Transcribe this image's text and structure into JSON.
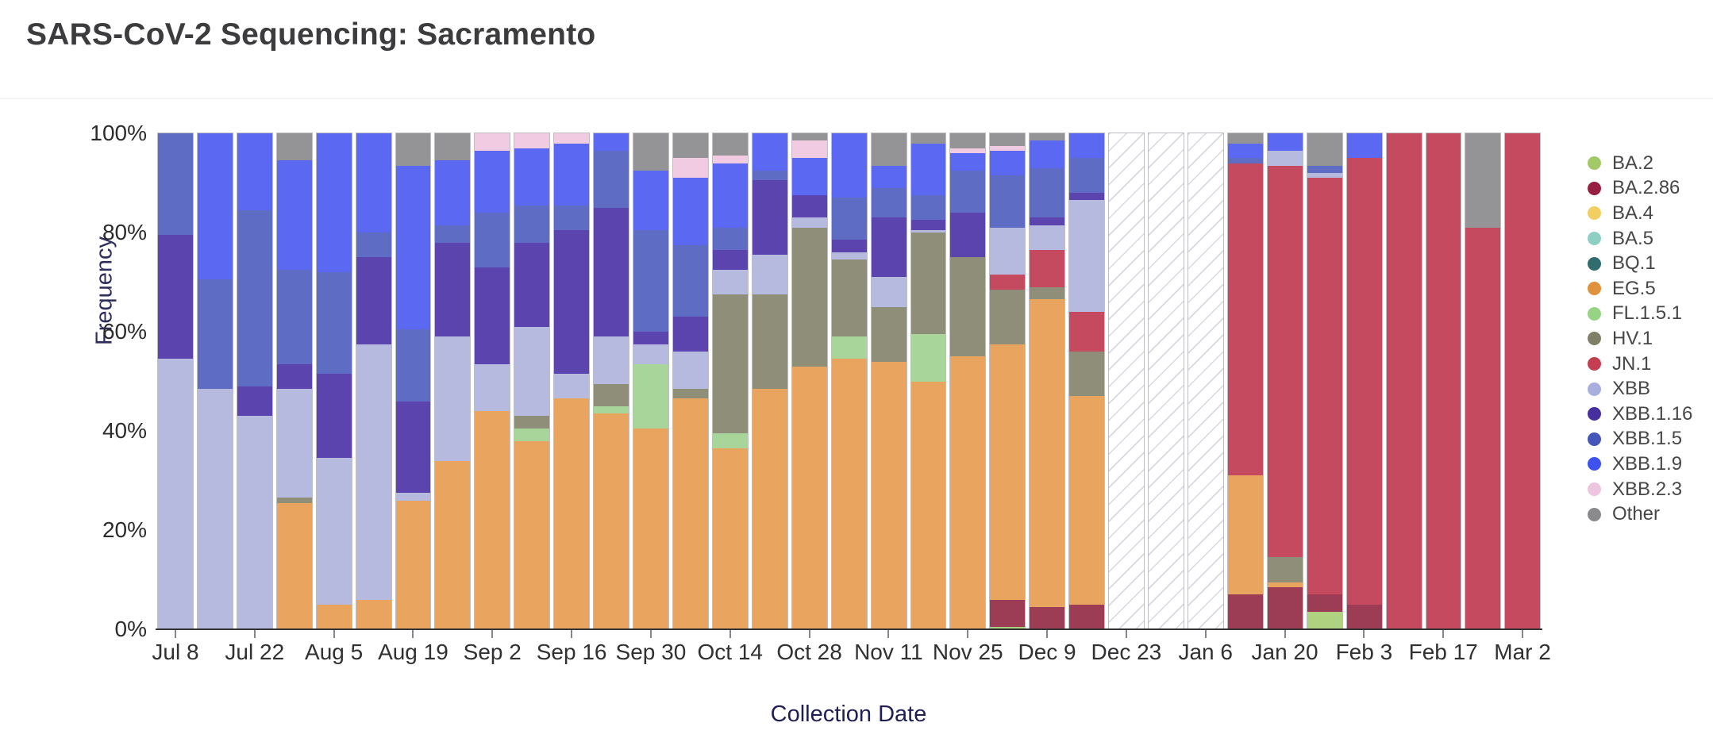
{
  "header": {
    "title": "SARS-CoV-2 Sequencing: Sacramento"
  },
  "chart_data": {
    "type": "bar",
    "stacked": true,
    "title": "SARS-CoV-2 Sequencing: Sacramento",
    "xlabel": "Collection Date",
    "ylabel": "Frequency",
    "ylim": [
      0,
      100
    ],
    "grid": false,
    "legend_position": "right",
    "y_tick_labels": [
      "0%",
      "20%",
      "40%",
      "60%",
      "80%",
      "100%"
    ],
    "x_tick_labels": [
      "Jul 8",
      "Jul 22",
      "Aug 5",
      "Aug 19",
      "Sep 2",
      "Sep 16",
      "Sep 30",
      "Oct 14",
      "Oct 28",
      "Nov 11",
      "Nov 25",
      "Dec 9",
      "Dec 23",
      "Jan 6",
      "Jan 20",
      "Feb 3",
      "Feb 17",
      "Mar 2"
    ],
    "series_legend": [
      {
        "name": "BA.2",
        "legend_color": "#a2c968",
        "bar_color": "#aed27f"
      },
      {
        "name": "BA.2.86",
        "legend_color": "#962041",
        "bar_color": "#9c3c55"
      },
      {
        "name": "BA.4",
        "legend_color": "#f2ce63",
        "bar_color": "#f2ce63"
      },
      {
        "name": "BA.5",
        "legend_color": "#8ecfc4",
        "bar_color": "#8ecfc4"
      },
      {
        "name": "BQ.1",
        "legend_color": "#2f6d6f",
        "bar_color": "#2f6d6f"
      },
      {
        "name": "EG.5",
        "legend_color": "#e0913c",
        "bar_color": "#e9a45f"
      },
      {
        "name": "FL.1.5.1",
        "legend_color": "#97d384",
        "bar_color": "#a8d59a"
      },
      {
        "name": "HV.1",
        "legend_color": "#7e7f66",
        "bar_color": "#8e8e79"
      },
      {
        "name": "JN.1",
        "legend_color": "#c43e52",
        "bar_color": "#c54a5f"
      },
      {
        "name": "XBB",
        "legend_color": "#a8aede",
        "bar_color": "#b5bade"
      },
      {
        "name": "XBB.1.16",
        "legend_color": "#47309e",
        "bar_color": "#5b44ad"
      },
      {
        "name": "XBB.1.5",
        "legend_color": "#4456b8",
        "bar_color": "#5f6cc4"
      },
      {
        "name": "XBB.1.9",
        "legend_color": "#3d52ee",
        "bar_color": "#5a68f2"
      },
      {
        "name": "XBB.2.3",
        "legend_color": "#eec5de",
        "bar_color": "#f0cbe2"
      },
      {
        "name": "Other",
        "legend_color": "#8a8a8c",
        "bar_color": "#949496"
      }
    ],
    "bars": [
      {
        "date": "Jul 8",
        "label": "Jul 8",
        "segments": [
          [
            "XBB",
            54.5
          ],
          [
            "XBB.1.16",
            25
          ],
          [
            "XBB.1.5",
            20.5
          ]
        ]
      },
      {
        "date": "Jul 15",
        "segments": [
          [
            "XBB",
            48.5
          ],
          [
            "XBB.1.5",
            22
          ],
          [
            "XBB.1.9",
            29.5
          ]
        ]
      },
      {
        "date": "Jul 22",
        "label": "Jul 22",
        "segments": [
          [
            "XBB",
            43
          ],
          [
            "XBB.1.16",
            6
          ],
          [
            "XBB.1.5",
            35.5
          ],
          [
            "XBB.1.9",
            15.5
          ]
        ]
      },
      {
        "date": "Jul 29",
        "segments": [
          [
            "EG.5",
            25.5
          ],
          [
            "HV.1",
            1
          ],
          [
            "XBB",
            22
          ],
          [
            "XBB.1.16",
            5
          ],
          [
            "XBB.1.5",
            19
          ],
          [
            "XBB.1.9",
            22
          ],
          [
            "Other",
            5.5
          ]
        ]
      },
      {
        "date": "Aug 5",
        "label": "Aug 5",
        "segments": [
          [
            "EG.5",
            5
          ],
          [
            "XBB",
            29.5
          ],
          [
            "XBB.1.16",
            17
          ],
          [
            "XBB.1.5",
            20.5
          ],
          [
            "XBB.1.9",
            28
          ]
        ]
      },
      {
        "date": "Aug 12",
        "segments": [
          [
            "EG.5",
            6
          ],
          [
            "XBB",
            51.5
          ],
          [
            "XBB.1.16",
            17.5
          ],
          [
            "XBB.1.5",
            5
          ],
          [
            "XBB.1.9",
            20
          ]
        ]
      },
      {
        "date": "Aug 19",
        "label": "Aug 19",
        "segments": [
          [
            "EG.5",
            26
          ],
          [
            "XBB",
            1.5
          ],
          [
            "XBB.1.16",
            18.5
          ],
          [
            "XBB.1.5",
            14.5
          ],
          [
            "XBB.1.9",
            33
          ],
          [
            "Other",
            6.5
          ]
        ]
      },
      {
        "date": "Aug 26",
        "segments": [
          [
            "EG.5",
            34
          ],
          [
            "XBB",
            25
          ],
          [
            "XBB.1.16",
            19
          ],
          [
            "XBB.1.5",
            3.5
          ],
          [
            "XBB.1.9",
            13
          ],
          [
            "Other",
            5.5
          ]
        ]
      },
      {
        "date": "Sep 2",
        "label": "Sep 2",
        "segments": [
          [
            "EG.5",
            44
          ],
          [
            "XBB",
            9.5
          ],
          [
            "XBB.1.16",
            19.5
          ],
          [
            "XBB.1.5",
            11
          ],
          [
            "XBB.1.9",
            12.5
          ],
          [
            "XBB.2.3",
            3.5
          ]
        ]
      },
      {
        "date": "Sep 9",
        "segments": [
          [
            "EG.5",
            38
          ],
          [
            "FL.1.5.1",
            2.5
          ],
          [
            "HV.1",
            2.5
          ],
          [
            "XBB",
            18
          ],
          [
            "XBB.1.16",
            17
          ],
          [
            "XBB.1.5",
            7.5
          ],
          [
            "XBB.1.9",
            11.5
          ],
          [
            "XBB.2.3",
            3
          ]
        ]
      },
      {
        "date": "Sep 16",
        "label": "Sep 16",
        "segments": [
          [
            "EG.5",
            46.5
          ],
          [
            "XBB",
            5
          ],
          [
            "XBB.1.16",
            29
          ],
          [
            "XBB.1.5",
            5
          ],
          [
            "XBB.1.9",
            12.5
          ],
          [
            "XBB.2.3",
            2
          ]
        ]
      },
      {
        "date": "Sep 23",
        "segments": [
          [
            "EG.5",
            43.5
          ],
          [
            "FL.1.5.1",
            1.5
          ],
          [
            "HV.1",
            4.5
          ],
          [
            "XBB",
            9.5
          ],
          [
            "XBB.1.16",
            26
          ],
          [
            "XBB.1.5",
            11.5
          ],
          [
            "XBB.1.9",
            3.5
          ]
        ]
      },
      {
        "date": "Sep 30",
        "label": "Sep 30",
        "segments": [
          [
            "EG.5",
            40.5
          ],
          [
            "FL.1.5.1",
            13
          ],
          [
            "XBB",
            4
          ],
          [
            "XBB.1.16",
            2.5
          ],
          [
            "XBB.1.5",
            20.5
          ],
          [
            "XBB.1.9",
            12
          ],
          [
            "Other",
            7.5
          ]
        ]
      },
      {
        "date": "Oct 7",
        "segments": [
          [
            "EG.5",
            46.5
          ],
          [
            "HV.1",
            2
          ],
          [
            "XBB",
            7.5
          ],
          [
            "XBB.1.16",
            7
          ],
          [
            "XBB.1.5",
            14.5
          ],
          [
            "XBB.1.9",
            13.5
          ],
          [
            "XBB.2.3",
            4
          ],
          [
            "Other",
            5
          ]
        ]
      },
      {
        "date": "Oct 14",
        "label": "Oct 14",
        "segments": [
          [
            "EG.5",
            36.5
          ],
          [
            "FL.1.5.1",
            3
          ],
          [
            "HV.1",
            28
          ],
          [
            "XBB",
            5
          ],
          [
            "XBB.1.16",
            4
          ],
          [
            "XBB.1.5",
            4.5
          ],
          [
            "XBB.1.9",
            13
          ],
          [
            "XBB.2.3",
            1.5
          ],
          [
            "Other",
            4.5
          ]
        ]
      },
      {
        "date": "Oct 21",
        "segments": [
          [
            "EG.5",
            48.5
          ],
          [
            "HV.1",
            19
          ],
          [
            "XBB",
            8
          ],
          [
            "XBB.1.16",
            15
          ],
          [
            "XBB.1.5",
            2
          ],
          [
            "XBB.1.9",
            7.5
          ]
        ]
      },
      {
        "date": "Oct 28",
        "label": "Oct 28",
        "segments": [
          [
            "EG.5",
            53
          ],
          [
            "HV.1",
            28
          ],
          [
            "XBB",
            2
          ],
          [
            "XBB.1.16",
            4.5
          ],
          [
            "XBB.1.9",
            7.5
          ],
          [
            "XBB.2.3",
            3.5
          ],
          [
            "Other",
            1.5
          ]
        ]
      },
      {
        "date": "Nov 4",
        "segments": [
          [
            "EG.5",
            54.5
          ],
          [
            "FL.1.5.1",
            4.5
          ],
          [
            "HV.1",
            15.5
          ],
          [
            "XBB",
            1.5
          ],
          [
            "XBB.1.16",
            2.5
          ],
          [
            "XBB.1.5",
            8.5
          ],
          [
            "XBB.1.9",
            13
          ]
        ]
      },
      {
        "date": "Nov 11",
        "label": "Nov 11",
        "segments": [
          [
            "EG.5",
            54
          ],
          [
            "HV.1",
            11
          ],
          [
            "XBB",
            6
          ],
          [
            "XBB.1.16",
            12
          ],
          [
            "XBB.1.5",
            6
          ],
          [
            "XBB.1.9",
            4.5
          ],
          [
            "Other",
            6.5
          ]
        ]
      },
      {
        "date": "Nov 18",
        "segments": [
          [
            "EG.5",
            50
          ],
          [
            "FL.1.5.1",
            9.5
          ],
          [
            "HV.1",
            20.5
          ],
          [
            "XBB",
            0.5
          ],
          [
            "XBB.1.16",
            2
          ],
          [
            "XBB.1.5",
            5
          ],
          [
            "XBB.1.9",
            10.5
          ],
          [
            "Other",
            2
          ]
        ]
      },
      {
        "date": "Nov 25",
        "label": "Nov 25",
        "segments": [
          [
            "EG.5",
            55
          ],
          [
            "HV.1",
            20
          ],
          [
            "XBB.1.16",
            9
          ],
          [
            "XBB.1.5",
            8.5
          ],
          [
            "XBB.1.9",
            3.5
          ],
          [
            "XBB.2.3",
            1
          ],
          [
            "Other",
            3
          ]
        ]
      },
      {
        "date": "Dec 2",
        "segments": [
          [
            "BA.2",
            0.5
          ],
          [
            "BA.2.86",
            5.5
          ],
          [
            "EG.5",
            51.5
          ],
          [
            "HV.1",
            11
          ],
          [
            "JN.1",
            3
          ],
          [
            "XBB",
            9.5
          ],
          [
            "XBB.1.5",
            10.5
          ],
          [
            "XBB.1.9",
            5
          ],
          [
            "XBB.2.3",
            1
          ],
          [
            "Other",
            2.5
          ]
        ]
      },
      {
        "date": "Dec 9",
        "label": "Dec 9",
        "segments": [
          [
            "BA.2.86",
            4.5
          ],
          [
            "EG.5",
            62
          ],
          [
            "HV.1",
            2.5
          ],
          [
            "JN.1",
            7.5
          ],
          [
            "XBB",
            5
          ],
          [
            "XBB.1.16",
            1.5
          ],
          [
            "XBB.1.5",
            10
          ],
          [
            "XBB.1.9",
            5.5
          ],
          [
            "Other",
            1.5
          ]
        ]
      },
      {
        "date": "Dec 16",
        "segments": [
          [
            "BA.2.86",
            5
          ],
          [
            "EG.5",
            42
          ],
          [
            "HV.1",
            9
          ],
          [
            "JN.1",
            8
          ],
          [
            "XBB",
            22.5
          ],
          [
            "XBB.1.16",
            1.5
          ],
          [
            "XBB.1.5",
            7
          ],
          [
            "XBB.1.9",
            5
          ]
        ]
      },
      {
        "date": "Dec 23",
        "label": "Dec 23",
        "no_data": true,
        "segments": []
      },
      {
        "date": "Dec 30",
        "no_data": true,
        "segments": []
      },
      {
        "date": "Jan 6",
        "label": "Jan 6",
        "no_data": true,
        "segments": []
      },
      {
        "date": "Jan 13",
        "segments": [
          [
            "BA.2.86",
            7
          ],
          [
            "EG.5",
            24
          ],
          [
            "JN.1",
            63
          ],
          [
            "XBB.1.5",
            1
          ],
          [
            "XBB.1.9",
            3
          ],
          [
            "Other",
            2
          ]
        ]
      },
      {
        "date": "Jan 20",
        "label": "Jan 20",
        "segments": [
          [
            "BA.2.86",
            8.5
          ],
          [
            "EG.5",
            1
          ],
          [
            "HV.1",
            5
          ],
          [
            "JN.1",
            79
          ],
          [
            "XBB",
            3
          ],
          [
            "XBB.1.9",
            3.5
          ]
        ]
      },
      {
        "date": "Jan 27",
        "segments": [
          [
            "BA.2",
            3.5
          ],
          [
            "BA.2.86",
            3.5
          ],
          [
            "JN.1",
            84
          ],
          [
            "XBB",
            1
          ],
          [
            "XBB.1.5",
            1.5
          ],
          [
            "Other",
            6.5
          ]
        ]
      },
      {
        "date": "Feb 3",
        "label": "Feb 3",
        "segments": [
          [
            "BA.2.86",
            5
          ],
          [
            "JN.1",
            90
          ],
          [
            "XBB.1.9",
            5
          ]
        ]
      },
      {
        "date": "Feb 10",
        "segments": [
          [
            "JN.1",
            100
          ]
        ]
      },
      {
        "date": "Feb 17",
        "label": "Feb 17",
        "segments": [
          [
            "JN.1",
            100
          ]
        ]
      },
      {
        "date": "Feb 24",
        "segments": [
          [
            "JN.1",
            81
          ],
          [
            "Other",
            19
          ]
        ]
      },
      {
        "date": "Mar 2",
        "label": "Mar 2",
        "segments": [
          [
            "JN.1",
            100
          ]
        ]
      }
    ]
  }
}
